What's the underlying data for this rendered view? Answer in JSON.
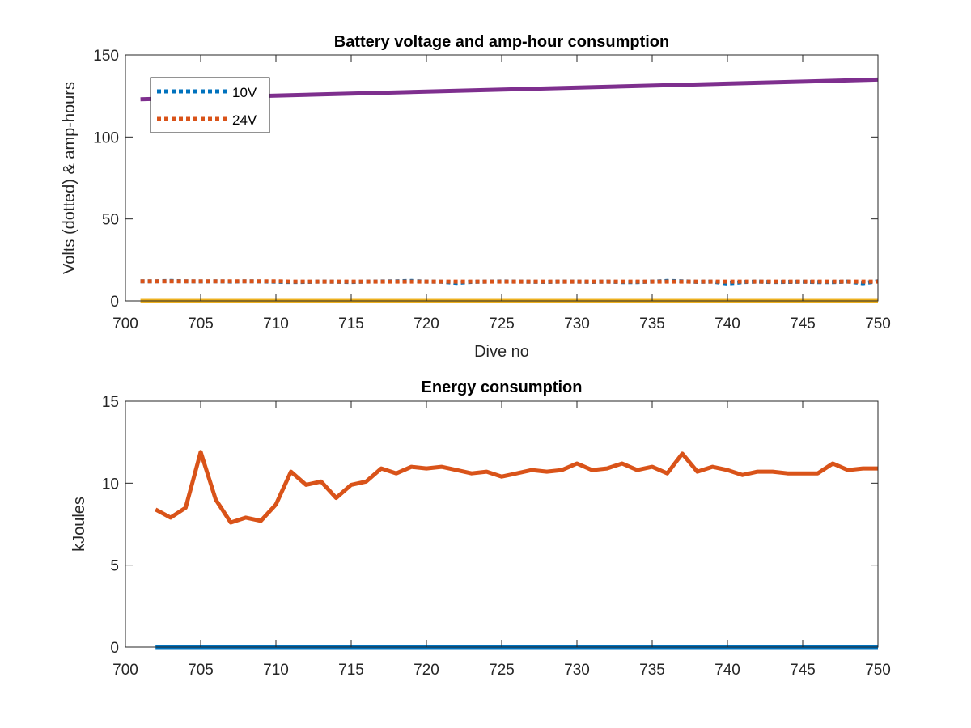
{
  "chart_data": [
    {
      "type": "line",
      "title": "Battery voltage and amp-hour consumption",
      "xlabel": "Dive no",
      "ylabel": "Volts (dotted) & amp-hours",
      "xlim": [
        700,
        750
      ],
      "ylim": [
        0,
        150
      ],
      "xticks": [
        "700",
        "705",
        "710",
        "715",
        "720",
        "725",
        "730",
        "735",
        "740",
        "745",
        "750"
      ],
      "yticks": [
        "0",
        "50",
        "100",
        "150"
      ],
      "legend_position": "top-left",
      "grid": false,
      "series": [
        {
          "name": "10V",
          "style": "dotted",
          "color": "#0072BD",
          "x": [
            701,
            702,
            703,
            704,
            705,
            706,
            707,
            708,
            709,
            710,
            711,
            712,
            713,
            714,
            715,
            716,
            717,
            718,
            719,
            720,
            721,
            722,
            723,
            724,
            725,
            726,
            727,
            728,
            729,
            730,
            731,
            732,
            733,
            734,
            735,
            736,
            737,
            738,
            739,
            740,
            741,
            742,
            743,
            744,
            745,
            746,
            747,
            748,
            749,
            750
          ],
          "values": [
            12,
            12,
            12.2,
            12,
            11.9,
            12,
            11.8,
            12,
            11.9,
            11.7,
            11.5,
            11.6,
            11.8,
            11.7,
            11.5,
            11.8,
            11.9,
            12,
            12.2,
            11.8,
            11.7,
            11,
            11.6,
            11.8,
            11.9,
            11.8,
            11.7,
            11.6,
            11.8,
            11.8,
            11.6,
            11.8,
            11.5,
            11.5,
            11.8,
            12.2,
            12,
            11.6,
            11.8,
            10.6,
            11.5,
            11.8,
            11.5,
            11.6,
            11.7,
            11.5,
            11.5,
            11.8,
            10.8,
            12
          ]
        },
        {
          "name": "24V",
          "style": "dotted",
          "color": "#D95319",
          "x": [
            701,
            702,
            703,
            704,
            705,
            706,
            707,
            708,
            709,
            710,
            711,
            712,
            713,
            714,
            715,
            716,
            717,
            718,
            719,
            720,
            721,
            722,
            723,
            724,
            725,
            726,
            727,
            728,
            729,
            730,
            731,
            732,
            733,
            734,
            735,
            736,
            737,
            738,
            739,
            740,
            741,
            742,
            743,
            744,
            745,
            746,
            747,
            748,
            749,
            750
          ],
          "values": [
            12,
            12,
            12,
            12,
            12,
            12,
            12,
            12,
            12,
            12,
            11.8,
            11.8,
            11.8,
            11.8,
            11.8,
            11.8,
            11.8,
            11.8,
            11.8,
            11.8,
            11.8,
            11.8,
            11.8,
            11.8,
            11.8,
            11.8,
            11.8,
            11.8,
            11.8,
            11.8,
            11.8,
            11.8,
            11.8,
            11.8,
            11.8,
            11.8,
            11.8,
            11.8,
            11.8,
            11.8,
            11.8,
            11.8,
            11.8,
            11.8,
            11.8,
            11.8,
            11.8,
            11.8,
            11.8,
            11.8
          ]
        },
        {
          "style": "solid",
          "color": "#EDB120",
          "x": [
            701,
            750
          ],
          "values": [
            0,
            0
          ]
        },
        {
          "style": "solid",
          "color": "#7E2F8E",
          "x": [
            701,
            750
          ],
          "values": [
            123,
            135
          ]
        }
      ]
    },
    {
      "type": "line",
      "title": "Energy consumption",
      "xlabel": "",
      "ylabel": "kJoules",
      "xlim": [
        700,
        750
      ],
      "ylim": [
        0,
        15
      ],
      "xticks": [
        "700",
        "705",
        "710",
        "715",
        "720",
        "725",
        "730",
        "735",
        "740",
        "745",
        "750"
      ],
      "yticks": [
        "0",
        "5",
        "10",
        "15"
      ],
      "grid": false,
      "series": [
        {
          "style": "solid",
          "color": "#0072BD",
          "x": [
            702,
            750
          ],
          "values": [
            0,
            0
          ]
        },
        {
          "style": "solid",
          "color": "#D95319",
          "x": [
            702,
            703,
            704,
            705,
            706,
            707,
            708,
            709,
            710,
            711,
            712,
            713,
            714,
            715,
            716,
            717,
            718,
            719,
            720,
            721,
            722,
            723,
            724,
            725,
            726,
            727,
            728,
            729,
            730,
            731,
            732,
            733,
            734,
            735,
            736,
            737,
            738,
            739,
            740,
            741,
            742,
            743,
            744,
            745,
            746,
            747,
            748,
            749,
            750
          ],
          "values": [
            8.4,
            7.9,
            8.5,
            11.9,
            9.0,
            7.6,
            7.9,
            7.7,
            8.7,
            10.7,
            9.9,
            10.1,
            9.1,
            9.9,
            10.1,
            10.9,
            10.6,
            11.0,
            10.9,
            11.0,
            10.8,
            10.6,
            10.7,
            10.4,
            10.6,
            10.8,
            10.7,
            10.8,
            11.2,
            10.8,
            10.9,
            11.2,
            10.8,
            11.0,
            10.6,
            11.8,
            10.7,
            11.0,
            10.8,
            10.5,
            10.7,
            10.7,
            10.6,
            10.6,
            10.6,
            11.2,
            10.8,
            10.9,
            10.9
          ]
        }
      ]
    }
  ]
}
